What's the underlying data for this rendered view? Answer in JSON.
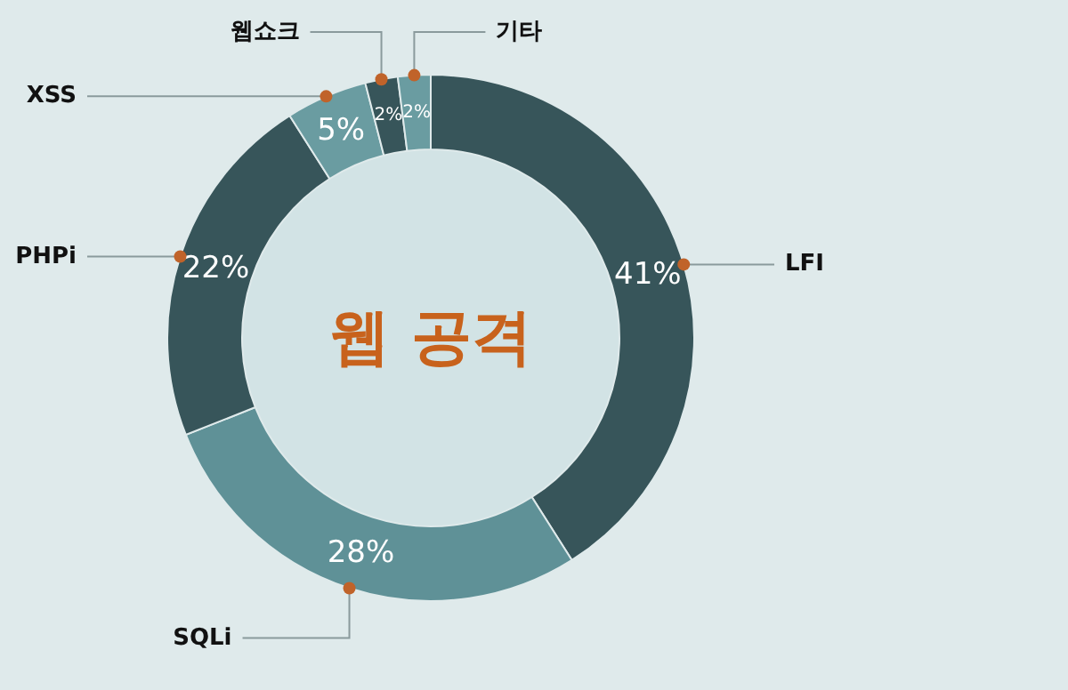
{
  "chart_data": {
    "type": "donut",
    "title": "웹 공격",
    "categories": [
      "LFI",
      "SQLi",
      "PHPi",
      "XSS",
      "웹쇼크",
      "기타"
    ],
    "values": [
      41,
      28,
      22,
      5,
      2,
      2
    ],
    "colors": [
      "#37555a",
      "#5f9197",
      "#37555a",
      "#6a9ca1",
      "#37555a",
      "#6a9ca1"
    ],
    "value_labels": [
      "41%",
      "28%",
      "22%",
      "5%",
      "2%",
      "2%"
    ]
  }
}
